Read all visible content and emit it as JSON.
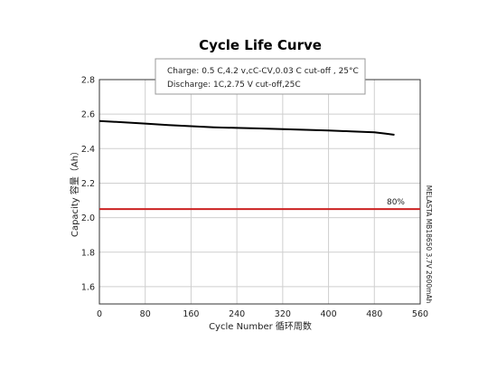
{
  "chart_data": {
    "type": "line",
    "title": "Cycle Life Curve",
    "xlabel": "Cycle Number 循环周数",
    "ylabel": "Capacity 容量（Ah）",
    "xlim": [
      0,
      560
    ],
    "ylim": [
      1.5,
      2.8
    ],
    "x_ticks": [
      "0",
      "80",
      "160",
      "240",
      "320",
      "400",
      "480",
      "560"
    ],
    "y_ticks": [
      "1.6",
      "1.8",
      "2.0",
      "2.2",
      "2.4",
      "2.6",
      "2.8"
    ],
    "grid": true,
    "conditions": [
      "Charge: 0.5 C,4.2 v,cC-CV,0.03 C cut-off , 25°C",
      "Discharge: 1C,2.75 V cut-off,25C"
    ],
    "threshold": {
      "value": 2.05,
      "label": "80%",
      "color": "#cc2222"
    },
    "side_note": "MELASTA MB18650 3.7V 2600mAh",
    "series": [
      {
        "color": "#000000",
        "x": [
          0,
          40,
          80,
          120,
          160,
          200,
          240,
          280,
          320,
          360,
          400,
          440,
          480,
          500,
          515
        ],
        "y": [
          2.56,
          2.553,
          2.545,
          2.537,
          2.53,
          2.524,
          2.52,
          2.517,
          2.513,
          2.509,
          2.505,
          2.5,
          2.495,
          2.487,
          2.48
        ]
      }
    ]
  }
}
